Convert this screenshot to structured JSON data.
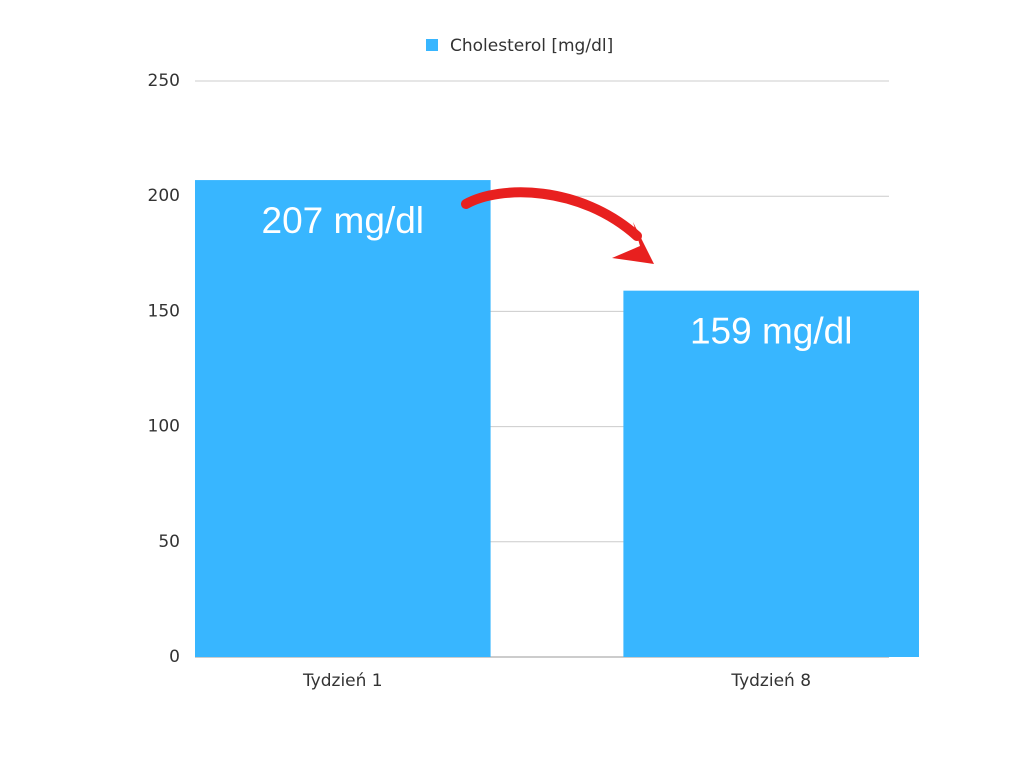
{
  "chart_data": {
    "type": "bar",
    "categories": [
      "Tydzień 1",
      "Tydzień 8"
    ],
    "series": [
      {
        "name": "Cholesterol [mg/dl]",
        "color": "#38b6ff",
        "values": [
          207,
          159
        ],
        "value_labels": [
          "207 mg/dl",
          "159 mg/dl"
        ]
      }
    ],
    "ylim": [
      0,
      250
    ],
    "yticks": [
      0,
      50,
      100,
      150,
      200,
      250
    ],
    "grid": true,
    "legend": "top"
  }
}
